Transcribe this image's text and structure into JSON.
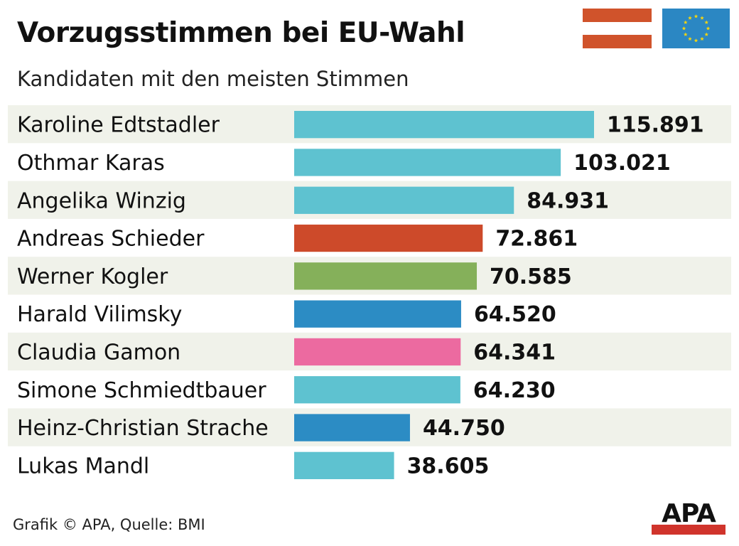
{
  "chart_data": {
    "type": "bar",
    "orientation": "horizontal",
    "title": "Vorzugsstimmen bei EU-Wahl",
    "subtitle": "Kandidaten mit den meisten Stimmen",
    "categories": [
      "Karoline Edtstadler",
      "Othmar Karas",
      "Angelika Winzig",
      "Andreas Schieder",
      "Werner Kogler",
      "Harald Vilimsky",
      "Claudia Gamon",
      "Simone Schmiedtbauer",
      "Heinz-Christian Strache",
      "Lukas Mandl"
    ],
    "values": [
      115891,
      103021,
      84931,
      72861,
      70585,
      64520,
      64341,
      64230,
      44750,
      38605
    ],
    "value_labels": [
      "115.891",
      "103.021",
      "84.931",
      "72.861",
      "70.585",
      "64.520",
      "64.341",
      "64.230",
      "44.750",
      "38.605"
    ],
    "bar_colors": [
      "#5ec2d0",
      "#5ec2d0",
      "#5ec2d0",
      "#cd4a2a",
      "#85b05a",
      "#2c8cc4",
      "#ec6aa0",
      "#5ec2d0",
      "#2c8cc4",
      "#5ec2d0"
    ],
    "xlim": [
      0,
      115891
    ],
    "stripe_color": "#f0f2ea"
  },
  "flags": {
    "austria": {
      "name": "austria-flag",
      "colors": [
        "#d0532b",
        "#ffffff",
        "#d0532b"
      ]
    },
    "eu": {
      "name": "eu-flag",
      "background": "#2b87c3",
      "star_color": "#f5d410"
    }
  },
  "footer": {
    "credit": "Grafik © APA, Quelle: BMI"
  },
  "logo": {
    "text": "APA",
    "bar_color": "#d0342c"
  }
}
